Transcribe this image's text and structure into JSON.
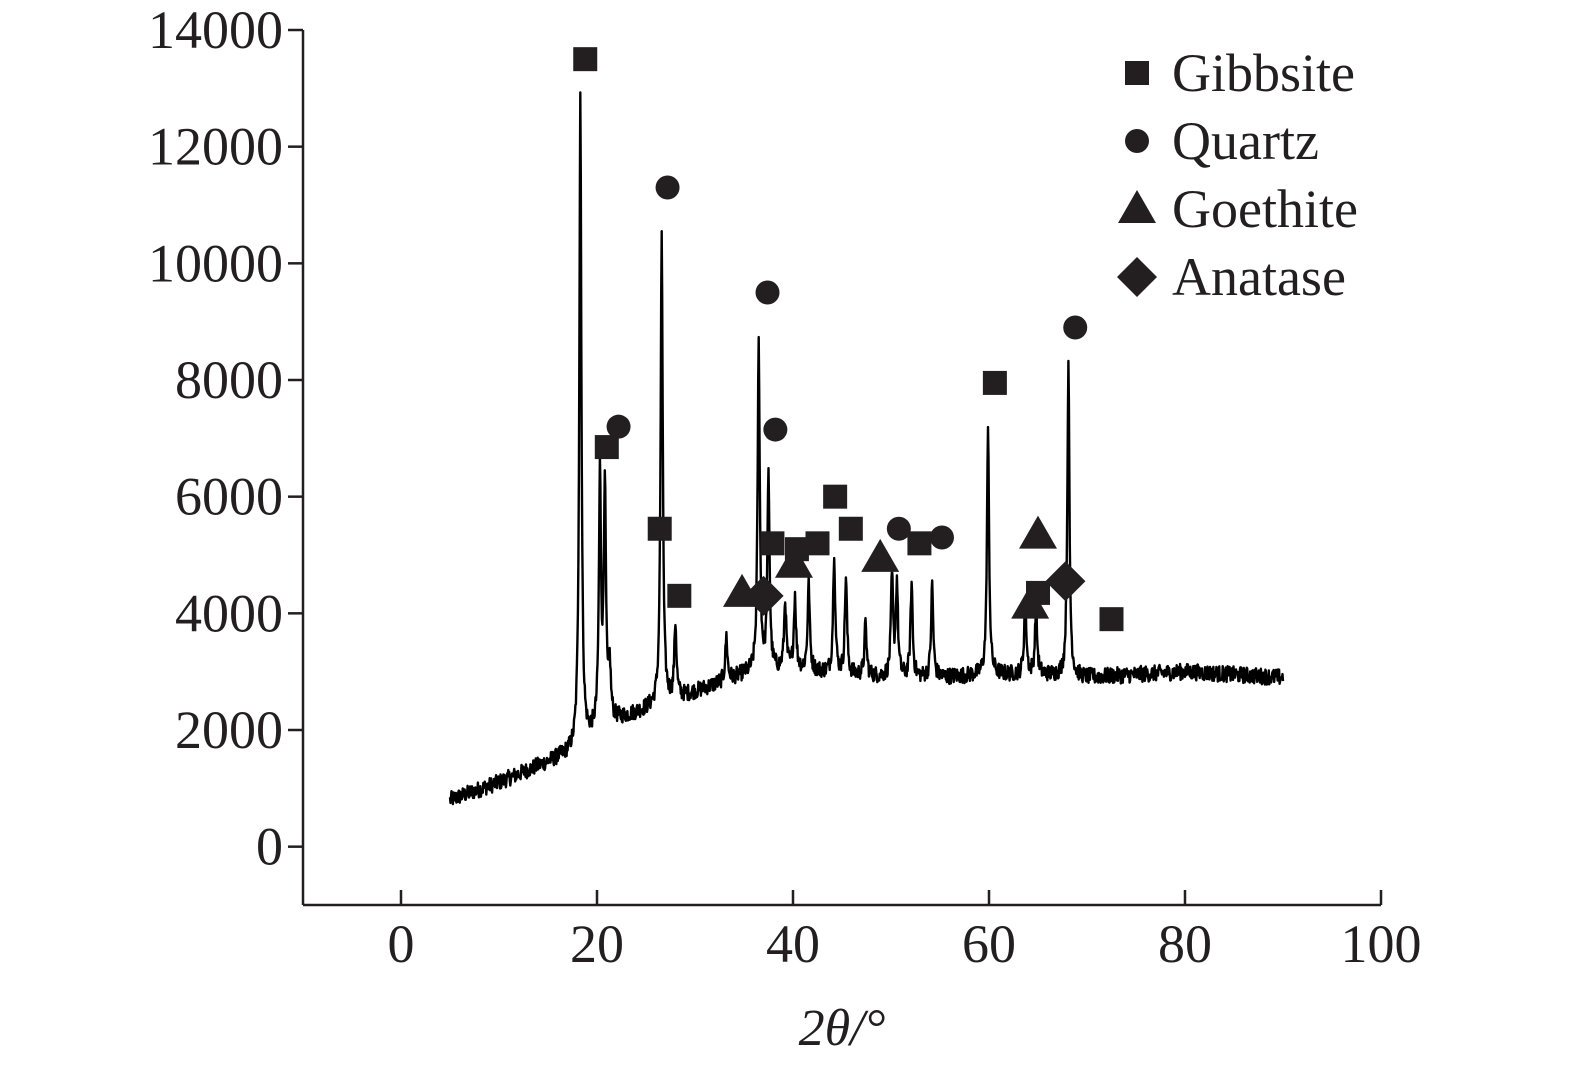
{
  "chart_data": {
    "type": "line",
    "title": "",
    "xlabel": "2θ/°",
    "ylabel": "",
    "xlim": [
      -10,
      100
    ],
    "ylim": [
      -1000,
      14000
    ],
    "x_ticks": [
      0,
      20,
      40,
      60,
      80,
      100
    ],
    "y_ticks": [
      0,
      2000,
      4000,
      6000,
      8000,
      10000,
      12000,
      14000
    ],
    "x_tick_labels": [
      "0",
      "20",
      "40",
      "60",
      "80",
      "100"
    ],
    "y_tick_labels": [
      "0",
      "2000",
      "4000",
      "6000",
      "8000",
      "10000",
      "12000",
      "14000"
    ],
    "grid": false,
    "legend_position": "top-right",
    "line_color": "#000000",
    "marker_color": "#231f20",
    "legend": [
      {
        "name": "Gibbsite",
        "marker": "square"
      },
      {
        "name": "Quartz",
        "marker": "circle"
      },
      {
        "name": "Goethite",
        "marker": "triangle"
      },
      {
        "name": "Anatase",
        "marker": "diamond"
      }
    ],
    "background": [
      [
        5,
        800
      ],
      [
        10,
        1100
      ],
      [
        15,
        1450
      ],
      [
        18,
        1650
      ],
      [
        19.5,
        1900
      ],
      [
        21,
        2100
      ],
      [
        25,
        2350
      ],
      [
        30,
        2650
      ],
      [
        35,
        2950
      ],
      [
        40,
        3050
      ],
      [
        45,
        2950
      ],
      [
        50,
        2900
      ],
      [
        55,
        2900
      ],
      [
        60,
        2950
      ],
      [
        65,
        2950
      ],
      [
        70,
        2900
      ],
      [
        75,
        2950
      ],
      [
        80,
        3000
      ],
      [
        85,
        2950
      ],
      [
        90,
        2900
      ]
    ],
    "peaks": [
      {
        "x": 18.3,
        "y": 12900
      },
      {
        "x": 20.3,
        "y": 6300
      },
      {
        "x": 20.8,
        "y": 6200
      },
      {
        "x": 21.3,
        "y": 3000
      },
      {
        "x": 26.6,
        "y": 10400
      },
      {
        "x": 28.0,
        "y": 3800
      },
      {
        "x": 33.2,
        "y": 3600
      },
      {
        "x": 36.5,
        "y": 8600
      },
      {
        "x": 37.5,
        "y": 6300
      },
      {
        "x": 39.2,
        "y": 4200
      },
      {
        "x": 40.2,
        "y": 4300
      },
      {
        "x": 41.6,
        "y": 4500
      },
      {
        "x": 44.2,
        "y": 5050
      },
      {
        "x": 45.4,
        "y": 4600
      },
      {
        "x": 47.4,
        "y": 3800
      },
      {
        "x": 50.1,
        "y": 4600
      },
      {
        "x": 50.6,
        "y": 4500
      },
      {
        "x": 52.1,
        "y": 4500
      },
      {
        "x": 54.2,
        "y": 4500
      },
      {
        "x": 59.9,
        "y": 7100
      },
      {
        "x": 63.7,
        "y": 4300
      },
      {
        "x": 64.8,
        "y": 4100
      },
      {
        "x": 68.1,
        "y": 8200
      }
    ],
    "markers": [
      {
        "phase": "Gibbsite",
        "x": 18.8,
        "y": 13500
      },
      {
        "phase": "Gibbsite",
        "x": 21.0,
        "y": 6850
      },
      {
        "phase": "Quartz",
        "x": 22.2,
        "y": 7200
      },
      {
        "phase": "Gibbsite",
        "x": 26.4,
        "y": 5450
      },
      {
        "phase": "Quartz",
        "x": 27.2,
        "y": 11300
      },
      {
        "phase": "Gibbsite",
        "x": 28.4,
        "y": 4300
      },
      {
        "phase": "Goethite",
        "x": 34.8,
        "y": 4350
      },
      {
        "phase": "Anatase",
        "x": 37.0,
        "y": 4300
      },
      {
        "phase": "Quartz",
        "x": 37.4,
        "y": 9500
      },
      {
        "phase": "Quartz",
        "x": 38.2,
        "y": 7150
      },
      {
        "phase": "Gibbsite",
        "x": 37.9,
        "y": 5200
      },
      {
        "phase": "Gibbsite",
        "x": 40.4,
        "y": 5100
      },
      {
        "phase": "Goethite",
        "x": 40.1,
        "y": 4850
      },
      {
        "phase": "Gibbsite",
        "x": 42.5,
        "y": 5200
      },
      {
        "phase": "Gibbsite",
        "x": 44.3,
        "y": 6000
      },
      {
        "phase": "Gibbsite",
        "x": 45.9,
        "y": 5450
      },
      {
        "phase": "Goethite",
        "x": 48.9,
        "y": 4950
      },
      {
        "phase": "Quartz",
        "x": 50.8,
        "y": 5450
      },
      {
        "phase": "Gibbsite",
        "x": 52.9,
        "y": 5200
      },
      {
        "phase": "Quartz",
        "x": 55.2,
        "y": 5300
      },
      {
        "phase": "Gibbsite",
        "x": 60.6,
        "y": 7950
      },
      {
        "phase": "Goethite",
        "x": 65.0,
        "y": 5350
      },
      {
        "phase": "Gibbsite",
        "x": 65.0,
        "y": 4350
      },
      {
        "phase": "Goethite",
        "x": 64.2,
        "y": 4150
      },
      {
        "phase": "Anatase",
        "x": 67.8,
        "y": 4550
      },
      {
        "phase": "Quartz",
        "x": 68.8,
        "y": 8900
      },
      {
        "phase": "Gibbsite",
        "x": 72.5,
        "y": 3900
      }
    ]
  }
}
